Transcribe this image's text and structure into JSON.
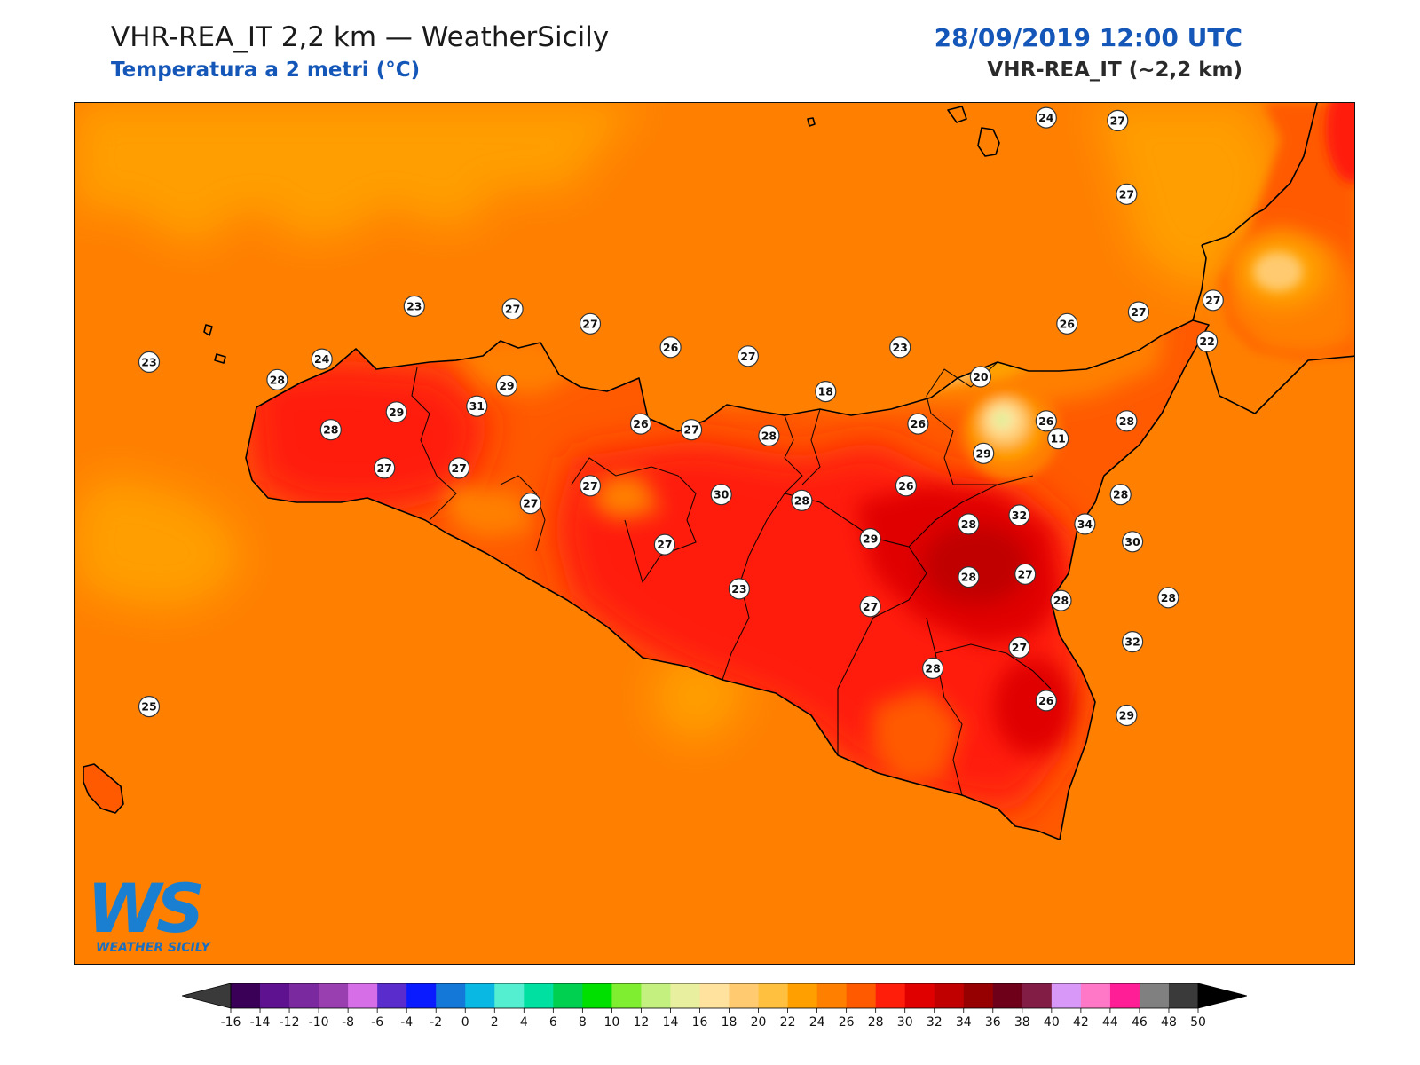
{
  "header": {
    "title": "VHR-REA_IT 2,2 km — WeatherSicily",
    "subtitle": "Temperatura a 2 metri (°C)",
    "datetime": "28/09/2019 12:00 UTC",
    "model": "VHR-REA_IT (~2,2 km)"
  },
  "logo": {
    "letters": "WS",
    "name": "WEATHER SICILY"
  },
  "colors": {
    "sea": "#ff8000",
    "warm_sea": "#ffa000",
    "land_28": "#ff5a00",
    "land_30": "#ff1e0a",
    "land_32": "#e00000",
    "land_34": "#b40000",
    "cool_land": "#ffd050",
    "coast": "#000000"
  },
  "stations": [
    {
      "v": "24",
      "lon": 14.96,
      "lat": 38.83
    },
    {
      "v": "27",
      "lon": 15.2,
      "lat": 38.82
    },
    {
      "v": "27",
      "lon": 15.23,
      "lat": 38.57
    },
    {
      "v": "23",
      "lon": 12.84,
      "lat": 38.19
    },
    {
      "v": "27",
      "lon": 13.17,
      "lat": 38.18
    },
    {
      "v": "27",
      "lon": 13.43,
      "lat": 38.13
    },
    {
      "v": "26",
      "lon": 13.7,
      "lat": 38.05
    },
    {
      "v": "27",
      "lon": 13.96,
      "lat": 38.02
    },
    {
      "v": "23",
      "lon": 14.47,
      "lat": 38.05
    },
    {
      "v": "26",
      "lon": 15.03,
      "lat": 38.13
    },
    {
      "v": "27",
      "lon": 15.27,
      "lat": 38.17
    },
    {
      "v": "27",
      "lon": 15.52,
      "lat": 38.21
    },
    {
      "v": "22",
      "lon": 15.5,
      "lat": 38.07
    },
    {
      "v": "23",
      "lon": 11.95,
      "lat": 38.0
    },
    {
      "v": "24",
      "lon": 12.53,
      "lat": 38.01
    },
    {
      "v": "28",
      "lon": 12.38,
      "lat": 37.94
    },
    {
      "v": "29",
      "lon": 13.15,
      "lat": 37.92
    },
    {
      "v": "18",
      "lon": 14.22,
      "lat": 37.9
    },
    {
      "v": "20",
      "lon": 14.74,
      "lat": 37.95
    },
    {
      "v": "29",
      "lon": 12.78,
      "lat": 37.83
    },
    {
      "v": "31",
      "lon": 13.05,
      "lat": 37.85
    },
    {
      "v": "26",
      "lon": 13.6,
      "lat": 37.79
    },
    {
      "v": "27",
      "lon": 13.77,
      "lat": 37.77
    },
    {
      "v": "28",
      "lon": 14.03,
      "lat": 37.75
    },
    {
      "v": "26",
      "lon": 14.53,
      "lat": 37.79
    },
    {
      "v": "26",
      "lon": 14.96,
      "lat": 37.8
    },
    {
      "v": "11",
      "lon": 15.0,
      "lat": 37.74
    },
    {
      "v": "28",
      "lon": 15.23,
      "lat": 37.8
    },
    {
      "v": "28",
      "lon": 12.56,
      "lat": 37.77
    },
    {
      "v": "29",
      "lon": 14.75,
      "lat": 37.69
    },
    {
      "v": "27",
      "lon": 12.74,
      "lat": 37.64
    },
    {
      "v": "27",
      "lon": 12.99,
      "lat": 37.64
    },
    {
      "v": "27",
      "lon": 13.43,
      "lat": 37.58
    },
    {
      "v": "26",
      "lon": 14.49,
      "lat": 37.58
    },
    {
      "v": "30",
      "lon": 13.87,
      "lat": 37.55
    },
    {
      "v": "28",
      "lon": 14.14,
      "lat": 37.53
    },
    {
      "v": "27",
      "lon": 13.23,
      "lat": 37.52
    },
    {
      "v": "28",
      "lon": 15.21,
      "lat": 37.55
    },
    {
      "v": "32",
      "lon": 14.87,
      "lat": 37.48
    },
    {
      "v": "28",
      "lon": 14.7,
      "lat": 37.45
    },
    {
      "v": "34",
      "lon": 15.09,
      "lat": 37.45
    },
    {
      "v": "29",
      "lon": 14.37,
      "lat": 37.4
    },
    {
      "v": "27",
      "lon": 13.68,
      "lat": 37.38
    },
    {
      "v": "30",
      "lon": 15.25,
      "lat": 37.39
    },
    {
      "v": "28",
      "lon": 14.7,
      "lat": 37.27
    },
    {
      "v": "27",
      "lon": 14.89,
      "lat": 37.28
    },
    {
      "v": "23",
      "lon": 13.93,
      "lat": 37.23
    },
    {
      "v": "27",
      "lon": 14.37,
      "lat": 37.17
    },
    {
      "v": "28",
      "lon": 15.01,
      "lat": 37.19
    },
    {
      "v": "28",
      "lon": 15.37,
      "lat": 37.2
    },
    {
      "v": "27",
      "lon": 14.87,
      "lat": 37.03
    },
    {
      "v": "32",
      "lon": 15.25,
      "lat": 37.05
    },
    {
      "v": "28",
      "lon": 14.58,
      "lat": 36.96
    },
    {
      "v": "26",
      "lon": 14.96,
      "lat": 36.85
    },
    {
      "v": "29",
      "lon": 15.23,
      "lat": 36.8
    },
    {
      "v": "25",
      "lon": 11.95,
      "lat": 36.83
    }
  ],
  "colorbar": {
    "ticks": [
      "-16",
      "-14",
      "-12",
      "-10",
      "-8",
      "-6",
      "-4",
      "-2",
      "0",
      "2",
      "4",
      "6",
      "8",
      "10",
      "12",
      "14",
      "16",
      "18",
      "20",
      "22",
      "24",
      "26",
      "28",
      "30",
      "32",
      "34",
      "36",
      "38",
      "40",
      "42",
      "44",
      "46",
      "48",
      "50"
    ],
    "colors": [
      "#3a0058",
      "#5e1290",
      "#7a2a9e",
      "#9a3fb0",
      "#d66ee8",
      "#5a2ccc",
      "#0a1cff",
      "#1478d8",
      "#0ab8e4",
      "#54efd0",
      "#00e0a0",
      "#00d050",
      "#00e000",
      "#80ee30",
      "#c4f080",
      "#e8f0a0",
      "#ffe29e",
      "#ffca70",
      "#ffc040",
      "#ffa000",
      "#ff8000",
      "#ff5a00",
      "#ff1e0a",
      "#e00000",
      "#c00000",
      "#960000",
      "#6e001a",
      "#821e46",
      "#d898f8",
      "#ff78c8",
      "#ff1e96",
      "#808080",
      "#3a3a3a"
    ],
    "under_color": "#3a3a3a",
    "over_color": "#000000"
  }
}
